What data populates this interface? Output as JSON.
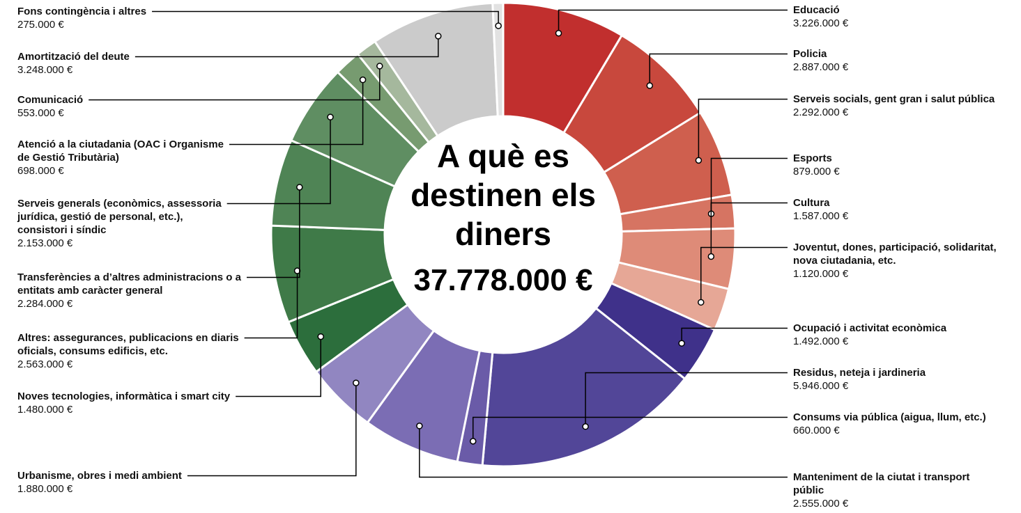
{
  "chart_data": {
    "type": "donut",
    "title": "A què es destinen els diners",
    "total_label": "37.778.000 €",
    "categories": [
      "Educació",
      "Policia",
      "Serveis socials, gent gran i salut pública",
      "Esports",
      "Cultura",
      "Joventut, dones, participació, solidaritat, nova ciutadania, etc.",
      "Ocupació i activitat econòmica",
      "Residus, neteja i jardineria",
      "Consums via pública (aigua, llum, etc.)",
      "Manteniment de la ciutat i transport públic",
      "Urbanisme, obres i medi ambient",
      "Noves tecnologies, informàtica i smart city",
      "Altres: assegurances, publicacions en diaris oficials, consums edificis, etc.",
      "Transferències a d’altres administracions o a entitats amb caràcter general",
      "Serveis generals (econòmics, assessoria jurídica, gestió de personal, etc.), consistori i síndic",
      "Atenció a la ciutadania (OAC i Organisme de Gestió Tributària)",
      "Comunicació",
      "Amortització del deute",
      "Fons contingència i altres"
    ],
    "values": [
      3226000,
      2887000,
      2292000,
      879000,
      1587000,
      1120000,
      1492000,
      5946000,
      660000,
      2555000,
      1880000,
      1480000,
      2563000,
      2284000,
      2153000,
      698000,
      553000,
      3248000,
      275000
    ],
    "value_labels": [
      "3.226.000 €",
      "2.887.000 €",
      "2.292.000 €",
      "879.000 €",
      "1.587.000 €",
      "1.120.000 €",
      "1.492.000 €",
      "5.946.000 €",
      "660.000 €",
      "2.555.000 €",
      "1.880.000 €",
      "1.480.000 €",
      "2.563.000 €",
      "2.284.000 €",
      "2.153.000 €",
      "698.000 €",
      "553.000 €",
      "3.248.000 €",
      "275.000 €"
    ],
    "colors": [
      "#c12f2e",
      "#c8483d",
      "#cf5f4e",
      "#d67462",
      "#de8b78",
      "#e6a796",
      "#3f318a",
      "#524698",
      "#6a5ba8",
      "#7b6db4",
      "#9186c1",
      "#2c6e3c",
      "#3f7a48",
      "#4f8455",
      "#5f8e62",
      "#779b70",
      "#a5b89d",
      "#cbcbcb",
      "#e2e2e2"
    ]
  }
}
